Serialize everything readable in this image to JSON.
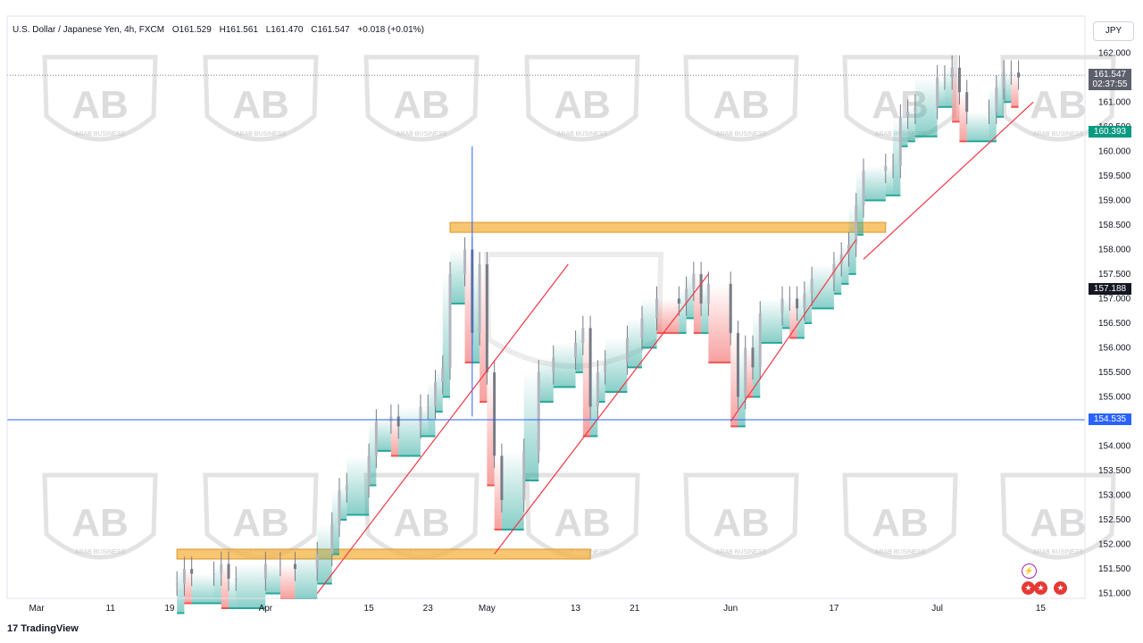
{
  "header": {
    "symbol": "U.S. Dollar / Japanese Yen, 4h, FXCM",
    "open": "O161.529",
    "high": "H161.561",
    "low": "L161.470",
    "close": "C161.547",
    "change": "+0.018 (+0.01%)"
  },
  "currency_button": "JPY",
  "brand": "TradingView",
  "watermark": {
    "text": "ARAB BUSINESS",
    "logo": "AB"
  },
  "price_labels": {
    "current": "161.547",
    "countdown": "02:37:55",
    "label_2": "160.393",
    "label_3": "157.188",
    "horizontal_line": "154.535"
  },
  "colors": {
    "up_candle": "#787b86",
    "trendline": "#f23645",
    "zone": "#f5b342",
    "hline": "#2962ff",
    "cloud_green": "#26a69a",
    "cloud_red": "#ef5350",
    "current_price_bg": "#5d606b",
    "label_2_bg": "#089981",
    "label_3_bg": "#131722"
  },
  "events": [
    "lightning-icon",
    "us-flag-icon",
    "us-flag-icon",
    "us-flag-icon"
  ],
  "chart_data": {
    "type": "line",
    "title": "U.S. Dollar / Japanese Yen, 4h, FXCM",
    "x_ticks": [
      "Mar",
      "11",
      "19",
      "Apr",
      "15",
      "23",
      "May",
      "13",
      "21",
      "Jun",
      "17",
      "Jul",
      "15"
    ],
    "y_ticks": [
      "151.000",
      "151.500",
      "152.000",
      "152.500",
      "153.000",
      "153.500",
      "154.000",
      "154.500",
      "155.000",
      "155.500",
      "156.000",
      "156.500",
      "157.000",
      "157.500",
      "158.000",
      "158.500",
      "159.000",
      "159.500",
      "160.000",
      "160.500",
      "161.000",
      "161.500",
      "162.000",
      "162.500"
    ],
    "ylim": [
      150.9,
      162.75
    ],
    "series": [
      {
        "values": [
          [
            "2024-03-20",
            151.2
          ],
          [
            "2024-03-21",
            151.5
          ],
          [
            "2024-03-22",
            151.4
          ],
          [
            "2024-03-25",
            151.4
          ],
          [
            "2024-03-26",
            151.6
          ],
          [
            "2024-03-27",
            151.3
          ],
          [
            "2024-03-28",
            151.3
          ],
          [
            "2024-04-01",
            151.6
          ],
          [
            "2024-04-03",
            151.6
          ],
          [
            "2024-04-05",
            151.5
          ],
          [
            "2024-04-08",
            151.8
          ],
          [
            "2024-04-10",
            152.4
          ],
          [
            "2024-04-11",
            153.1
          ],
          [
            "2024-04-12",
            153.2
          ],
          [
            "2024-04-15",
            153.8
          ],
          [
            "2024-04-16",
            154.5
          ],
          [
            "2024-04-18",
            154.6
          ],
          [
            "2024-04-19",
            154.4
          ],
          [
            "2024-04-22",
            154.8
          ],
          [
            "2024-04-23",
            154.8
          ],
          [
            "2024-04-24",
            155.3
          ],
          [
            "2024-04-25",
            155.6
          ],
          [
            "2024-04-26",
            157.5
          ],
          [
            "2024-04-28",
            158.0
          ],
          [
            "2024-04-29",
            156.3
          ],
          [
            "2024-04-30",
            157.7
          ],
          [
            "2024-05-01",
            155.5
          ],
          [
            "2024-05-02",
            153.8
          ],
          [
            "2024-05-03",
            152.9
          ],
          [
            "2024-05-06",
            153.9
          ],
          [
            "2024-05-08",
            155.5
          ],
          [
            "2024-05-10",
            155.8
          ],
          [
            "2024-05-13",
            156.1
          ],
          [
            "2024-05-14",
            156.4
          ],
          [
            "2024-05-15",
            154.8
          ],
          [
            "2024-05-16",
            155.5
          ],
          [
            "2024-05-17",
            155.7
          ],
          [
            "2024-05-20",
            156.2
          ],
          [
            "2024-05-22",
            156.6
          ],
          [
            "2024-05-24",
            157.0
          ],
          [
            "2024-05-27",
            156.9
          ],
          [
            "2024-05-28",
            157.2
          ],
          [
            "2024-05-29",
            157.5
          ],
          [
            "2024-05-30",
            156.9
          ],
          [
            "2024-05-31",
            157.3
          ],
          [
            "2024-06-03",
            156.3
          ],
          [
            "2024-06-04",
            155.0
          ],
          [
            "2024-06-05",
            156.0
          ],
          [
            "2024-06-06",
            155.6
          ],
          [
            "2024-06-07",
            156.7
          ],
          [
            "2024-06-10",
            157.0
          ],
          [
            "2024-06-11",
            157.0
          ],
          [
            "2024-06-12",
            156.8
          ],
          [
            "2024-06-13",
            157.1
          ],
          [
            "2024-06-14",
            157.4
          ],
          [
            "2024-06-17",
            157.7
          ],
          [
            "2024-06-18",
            157.9
          ],
          [
            "2024-06-19",
            158.1
          ],
          [
            "2024-06-20",
            158.9
          ],
          [
            "2024-06-21",
            159.6
          ],
          [
            "2024-06-24",
            159.7
          ],
          [
            "2024-06-25",
            159.7
          ],
          [
            "2024-06-26",
            160.7
          ],
          [
            "2024-06-27",
            160.8
          ],
          [
            "2024-06-28",
            160.9
          ],
          [
            "2024-07-01",
            161.5
          ],
          [
            "2024-07-02",
            161.5
          ],
          [
            "2024-07-03",
            161.7
          ],
          [
            "2024-07-04",
            161.2
          ],
          [
            "2024-07-05",
            160.8
          ],
          [
            "2024-07-08",
            160.8
          ],
          [
            "2024-07-09",
            161.3
          ],
          [
            "2024-07-10",
            161.6
          ],
          [
            "2024-07-11",
            161.6
          ],
          [
            "2024-07-12",
            161.5
          ]
        ]
      }
    ],
    "annotations": {
      "resistance_zone": {
        "x": [
          "2024-04-26",
          "2024-06-24"
        ],
        "y": [
          158.35,
          158.55
        ]
      },
      "support_zone": {
        "x": [
          "2024-03-20",
          "2024-05-15"
        ],
        "y": [
          151.7,
          151.9
        ]
      },
      "horizontal_line": 154.535,
      "trendlines": [
        {
          "x": [
            "2024-04-08",
            "2024-05-12"
          ],
          "y": [
            151.0,
            157.7
          ]
        },
        {
          "x": [
            "2024-05-02",
            "2024-05-31"
          ],
          "y": [
            151.8,
            157.5
          ]
        },
        {
          "x": [
            "2024-06-03",
            "2024-06-20"
          ],
          "y": [
            154.5,
            158.2
          ]
        },
        {
          "x": [
            "2024-06-21",
            "2024-07-14"
          ],
          "y": [
            157.8,
            161.0
          ]
        }
      ]
    }
  }
}
